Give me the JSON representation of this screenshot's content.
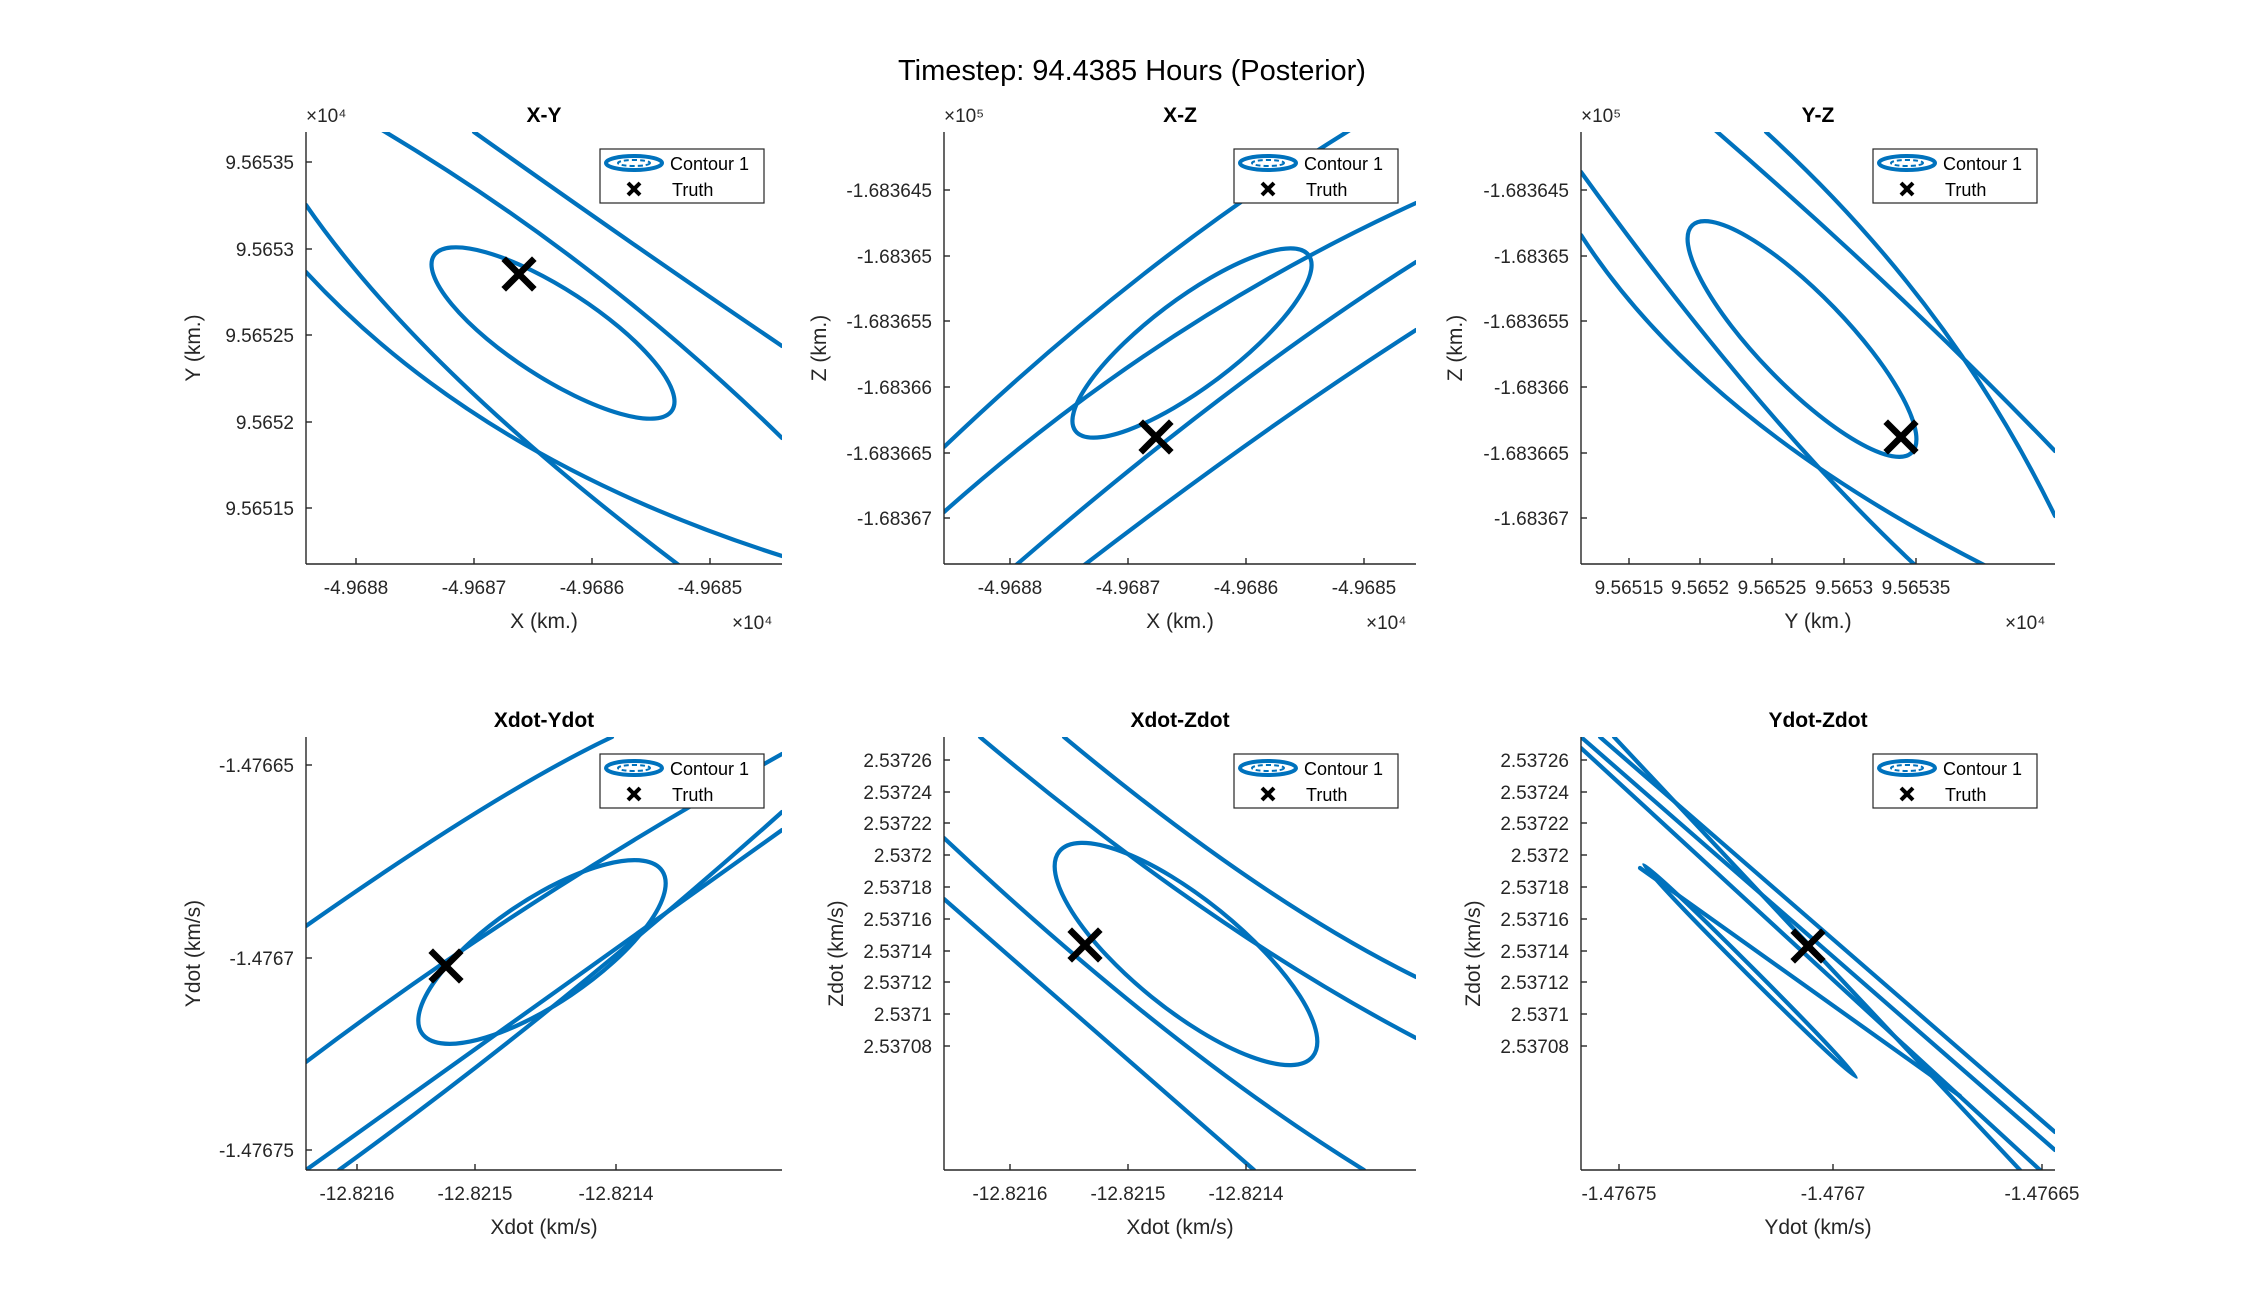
{
  "figure": {
    "title": "Timestep: 94.4385 Hours (Posterior)"
  },
  "colors": {
    "contour": "#0072BD",
    "truth": "#000000",
    "axes": "#262626"
  },
  "chart_data": [
    {
      "type": "contour",
      "title": "X-Y",
      "xlabel": "X (km.)",
      "ylabel": "Y (km.)",
      "x_multiplier": "×10^4",
      "y_multiplier": "×10^4",
      "xticks": [
        "-4.9688",
        "-4.9687",
        "-4.9686",
        "-4.9685"
      ],
      "yticks": [
        "9.56535",
        "9.5653",
        "9.56525",
        "9.5652",
        "9.56515"
      ],
      "legend": [
        "Contour 1",
        "Truth"
      ],
      "legend_position": "top-right"
    },
    {
      "type": "contour",
      "title": "X-Z",
      "xlabel": "X (km.)",
      "ylabel": "Z (km.)",
      "x_multiplier": "×10^4",
      "y_multiplier": "×10^5",
      "xticks": [
        "-4.9688",
        "-4.9687",
        "-4.9686",
        "-4.9685"
      ],
      "yticks": [
        "-1.683645",
        "-1.68365",
        "-1.683655",
        "-1.68366",
        "-1.683665",
        "-1.68367"
      ],
      "legend": [
        "Contour 1",
        "Truth"
      ],
      "legend_position": "top-right"
    },
    {
      "type": "contour",
      "title": "Y-Z",
      "xlabel": "Y (km.)",
      "ylabel": "Z (km.)",
      "x_multiplier": "×10^4",
      "y_multiplier": "×10^5",
      "xticks": [
        "9.56515",
        "9.5652",
        "9.56525",
        "9.5653",
        "9.56535"
      ],
      "yticks": [
        "-1.683645",
        "-1.68365",
        "-1.683655",
        "-1.68366",
        "-1.683665",
        "-1.68367"
      ],
      "legend": [
        "Contour 1",
        "Truth"
      ],
      "legend_position": "top-right"
    },
    {
      "type": "contour",
      "title": "Xdot-Ydot",
      "xlabel": "Xdot (km/s)",
      "ylabel": "Ydot (km/s)",
      "xticks": [
        "-12.8216",
        "-12.8215",
        "-12.8214"
      ],
      "yticks": [
        "-1.47665",
        "-1.4767",
        "-1.47675"
      ],
      "legend": [
        "Contour 1",
        "Truth"
      ],
      "legend_position": "top-right"
    },
    {
      "type": "contour",
      "title": "Xdot-Zdot",
      "xlabel": "Xdot (km/s)",
      "ylabel": "Zdot (km/s)",
      "xticks": [
        "-12.8216",
        "-12.8215",
        "-12.8214"
      ],
      "yticks": [
        "2.53726",
        "2.53724",
        "2.53722",
        "2.5372",
        "2.53718",
        "2.53716",
        "2.53714",
        "2.53712",
        "2.5371",
        "2.53708"
      ],
      "legend": [
        "Contour 1",
        "Truth"
      ],
      "legend_position": "top-right"
    },
    {
      "type": "contour",
      "title": "Ydot-Zdot",
      "xlabel": "Ydot (km/s)",
      "ylabel": "Zdot (km/s)",
      "xticks": [
        "-1.47675",
        "-1.4767",
        "-1.47665"
      ],
      "yticks": [
        "2.53726",
        "2.53724",
        "2.53722",
        "2.5372",
        "2.53718",
        "2.53716",
        "2.53714",
        "2.53712",
        "2.5371",
        "2.53708"
      ],
      "legend": [
        "Contour 1",
        "Truth"
      ],
      "legend_position": "top-right"
    }
  ]
}
